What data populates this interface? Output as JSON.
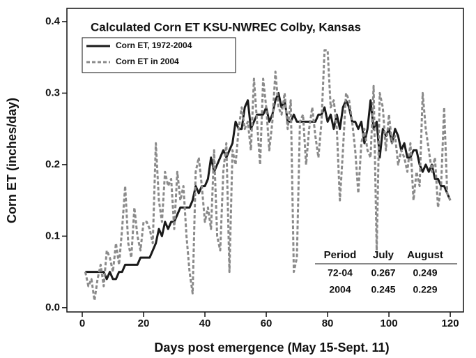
{
  "chart_data": {
    "type": "line",
    "title": "Calculated Corn ET KSU-NWREC Colby, Kansas",
    "xlabel": "Days post emergence (May 15-Sept. 11)",
    "ylabel": "Corn ET (inches/day)",
    "x": [
      1,
      2,
      3,
      4,
      5,
      6,
      7,
      8,
      9,
      10,
      11,
      12,
      13,
      14,
      15,
      16,
      17,
      18,
      19,
      20,
      21,
      22,
      23,
      24,
      25,
      26,
      27,
      28,
      29,
      30,
      31,
      32,
      33,
      34,
      35,
      36,
      37,
      38,
      39,
      40,
      41,
      42,
      43,
      44,
      45,
      46,
      47,
      48,
      49,
      50,
      51,
      52,
      53,
      54,
      55,
      56,
      57,
      58,
      59,
      60,
      61,
      62,
      63,
      64,
      65,
      66,
      67,
      68,
      69,
      70,
      71,
      72,
      73,
      74,
      75,
      76,
      77,
      78,
      79,
      80,
      81,
      82,
      83,
      84,
      85,
      86,
      87,
      88,
      89,
      90,
      91,
      92,
      93,
      94,
      95,
      96,
      97,
      98,
      99,
      100,
      101,
      102,
      103,
      104,
      105,
      106,
      107,
      108,
      109,
      110,
      111,
      112,
      113,
      114,
      115,
      116,
      117,
      118,
      119,
      120
    ],
    "series": [
      {
        "name": "Corn ET, 1972-2004",
        "color": "#1a1a1a",
        "dashed": false,
        "values": [
          0.05,
          0.05,
          0.05,
          0.05,
          0.05,
          0.05,
          0.05,
          0.04,
          0.05,
          0.04,
          0.04,
          0.05,
          0.05,
          0.06,
          0.06,
          0.06,
          0.06,
          0.06,
          0.07,
          0.07,
          0.07,
          0.07,
          0.08,
          0.09,
          0.11,
          0.1,
          0.12,
          0.11,
          0.12,
          0.12,
          0.13,
          0.14,
          0.14,
          0.14,
          0.14,
          0.15,
          0.17,
          0.16,
          0.17,
          0.17,
          0.18,
          0.21,
          0.19,
          0.2,
          0.21,
          0.22,
          0.21,
          0.22,
          0.23,
          0.26,
          0.25,
          0.25,
          0.28,
          0.29,
          0.25,
          0.26,
          0.27,
          0.27,
          0.27,
          0.28,
          0.26,
          0.27,
          0.29,
          0.3,
          0.28,
          0.29,
          0.26,
          0.26,
          0.27,
          0.26,
          0.26,
          0.26,
          0.26,
          0.26,
          0.26,
          0.26,
          0.27,
          0.27,
          0.28,
          0.26,
          0.27,
          0.25,
          0.27,
          0.25,
          0.28,
          0.29,
          0.28,
          0.26,
          0.26,
          0.25,
          0.26,
          0.23,
          0.25,
          0.29,
          0.25,
          0.26,
          0.21,
          0.25,
          0.24,
          0.25,
          0.23,
          0.25,
          0.24,
          0.22,
          0.23,
          0.21,
          0.21,
          0.22,
          0.22,
          0.2,
          0.19,
          0.2,
          0.19,
          0.2,
          0.18,
          0.18,
          0.17,
          0.17,
          0.16,
          0.15
        ]
      },
      {
        "name": "Corn ET in 2004",
        "color": "#8a8a8a",
        "dashed": true,
        "values": [
          0.05,
          0.03,
          0.04,
          0.01,
          0.04,
          0.06,
          0.03,
          0.08,
          0.07,
          0.05,
          0.09,
          0.06,
          0.11,
          0.17,
          0.09,
          0.07,
          0.14,
          0.1,
          0.08,
          0.12,
          0.12,
          0.11,
          0.09,
          0.23,
          0.15,
          0.12,
          0.19,
          0.17,
          0.18,
          0.11,
          0.19,
          0.15,
          0.17,
          0.1,
          0.05,
          0.02,
          0.19,
          0.21,
          0.17,
          0.12,
          0.14,
          0.11,
          0.22,
          0.1,
          0.08,
          0.19,
          0.23,
          0.05,
          0.22,
          0.2,
          0.25,
          0.28,
          0.25,
          0.26,
          0.22,
          0.32,
          0.26,
          0.2,
          0.32,
          0.28,
          0.22,
          0.26,
          0.33,
          0.28,
          0.27,
          0.3,
          0.25,
          0.29,
          0.05,
          0.07,
          0.26,
          0.27,
          0.2,
          0.25,
          0.28,
          0.24,
          0.21,
          0.26,
          0.36,
          0.36,
          0.28,
          0.29,
          0.25,
          0.15,
          0.22,
          0.3,
          0.29,
          0.26,
          0.22,
          0.16,
          0.23,
          0.25,
          0.22,
          0.21,
          0.31,
          0.08,
          0.3,
          0.28,
          0.22,
          0.27,
          0.23,
          0.24,
          0.2,
          0.22,
          0.21,
          0.19,
          0.23,
          0.15,
          0.19,
          0.17,
          0.3,
          0.25,
          0.22,
          0.19,
          0.21,
          0.14,
          0.17,
          0.28,
          0.16,
          0.15
        ]
      }
    ],
    "xlim": [
      -5,
      124.3
    ],
    "ylim": [
      -0.006,
      0.4185
    ],
    "xticks": [
      0,
      20,
      40,
      60,
      80,
      100,
      120
    ],
    "yticks": [
      {
        "value": 0,
        "label": "0.0"
      },
      0.1,
      0.2,
      0.3,
      0.4
    ],
    "legend": "upper left",
    "table": {
      "header": [
        "Period",
        "July",
        "August"
      ],
      "rows": [
        [
          "72-04",
          "0.267",
          "0.249"
        ],
        [
          "2004",
          "0.245",
          "0.229"
        ]
      ]
    }
  }
}
